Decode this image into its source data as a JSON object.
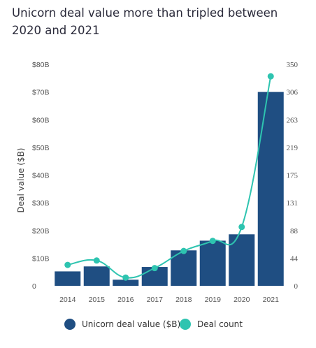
{
  "title": "Unicorn deal value more than tripled between 2020 and 2021",
  "chart_data": {
    "type": "bar",
    "categories": [
      "2014",
      "2015",
      "2016",
      "2017",
      "2018",
      "2019",
      "2020",
      "2021"
    ],
    "series": [
      {
        "name": "Unicorn deal value ($B)",
        "type": "bar",
        "axis": "left",
        "color": "#1f4e82",
        "values": [
          5.2,
          7.0,
          2.2,
          6.8,
          12.8,
          16.3,
          18.6,
          70.0
        ]
      },
      {
        "name": "Deal count",
        "type": "line",
        "axis": "right",
        "color": "#2ec4b0",
        "values": [
          33,
          40,
          13,
          28,
          55,
          71,
          93,
          331
        ]
      }
    ],
    "ylabel": "Deal value ($B)",
    "ylim": [
      0,
      80
    ],
    "y2lim": [
      0,
      350
    ],
    "yticks": [
      "0",
      "$10B",
      "$20B",
      "$30B",
      "$40B",
      "$50B",
      "$60B",
      "$70B",
      "$80B"
    ],
    "y2ticks": [
      "0",
      "44",
      "88",
      "131",
      "175",
      "219",
      "263",
      "306",
      "350"
    ],
    "grid": false,
    "legend": "bottom"
  }
}
